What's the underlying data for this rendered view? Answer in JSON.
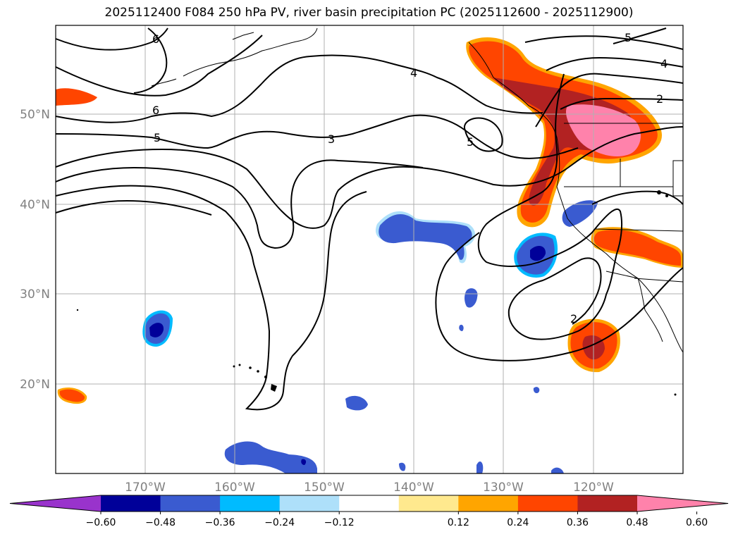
{
  "title": "2025112400 F084 250 hPa PV, river basin precipitation PC (2025112600 - 2025112900)",
  "lat_labels": [
    "50°N",
    "40°N",
    "30°N",
    "20°N"
  ],
  "lon_labels": [
    "170°W",
    "160°W",
    "150°W",
    "140°W",
    "130°W",
    "120°W"
  ],
  "contour_labels": [
    "6",
    "6",
    "5",
    "3",
    "4",
    "5",
    "5",
    "4",
    "2",
    "2"
  ],
  "colorbar": {
    "ticks": [
      "−0.60",
      "−0.48",
      "−0.36",
      "−0.24",
      "−0.12",
      "0.12",
      "0.24",
      "0.36",
      "0.48",
      "0.60"
    ],
    "colors": [
      "#9933cc",
      "#000099",
      "#3a5bd0",
      "#00bbff",
      "#aee0fa",
      "#ffffff",
      "#ffe98e",
      "#ffa500",
      "#ff4500",
      "#b22222",
      "#ff82ab"
    ]
  },
  "colors": {
    "coast": "#000000",
    "grid": "#b0b0b0",
    "pv_contour": "#000000"
  }
}
